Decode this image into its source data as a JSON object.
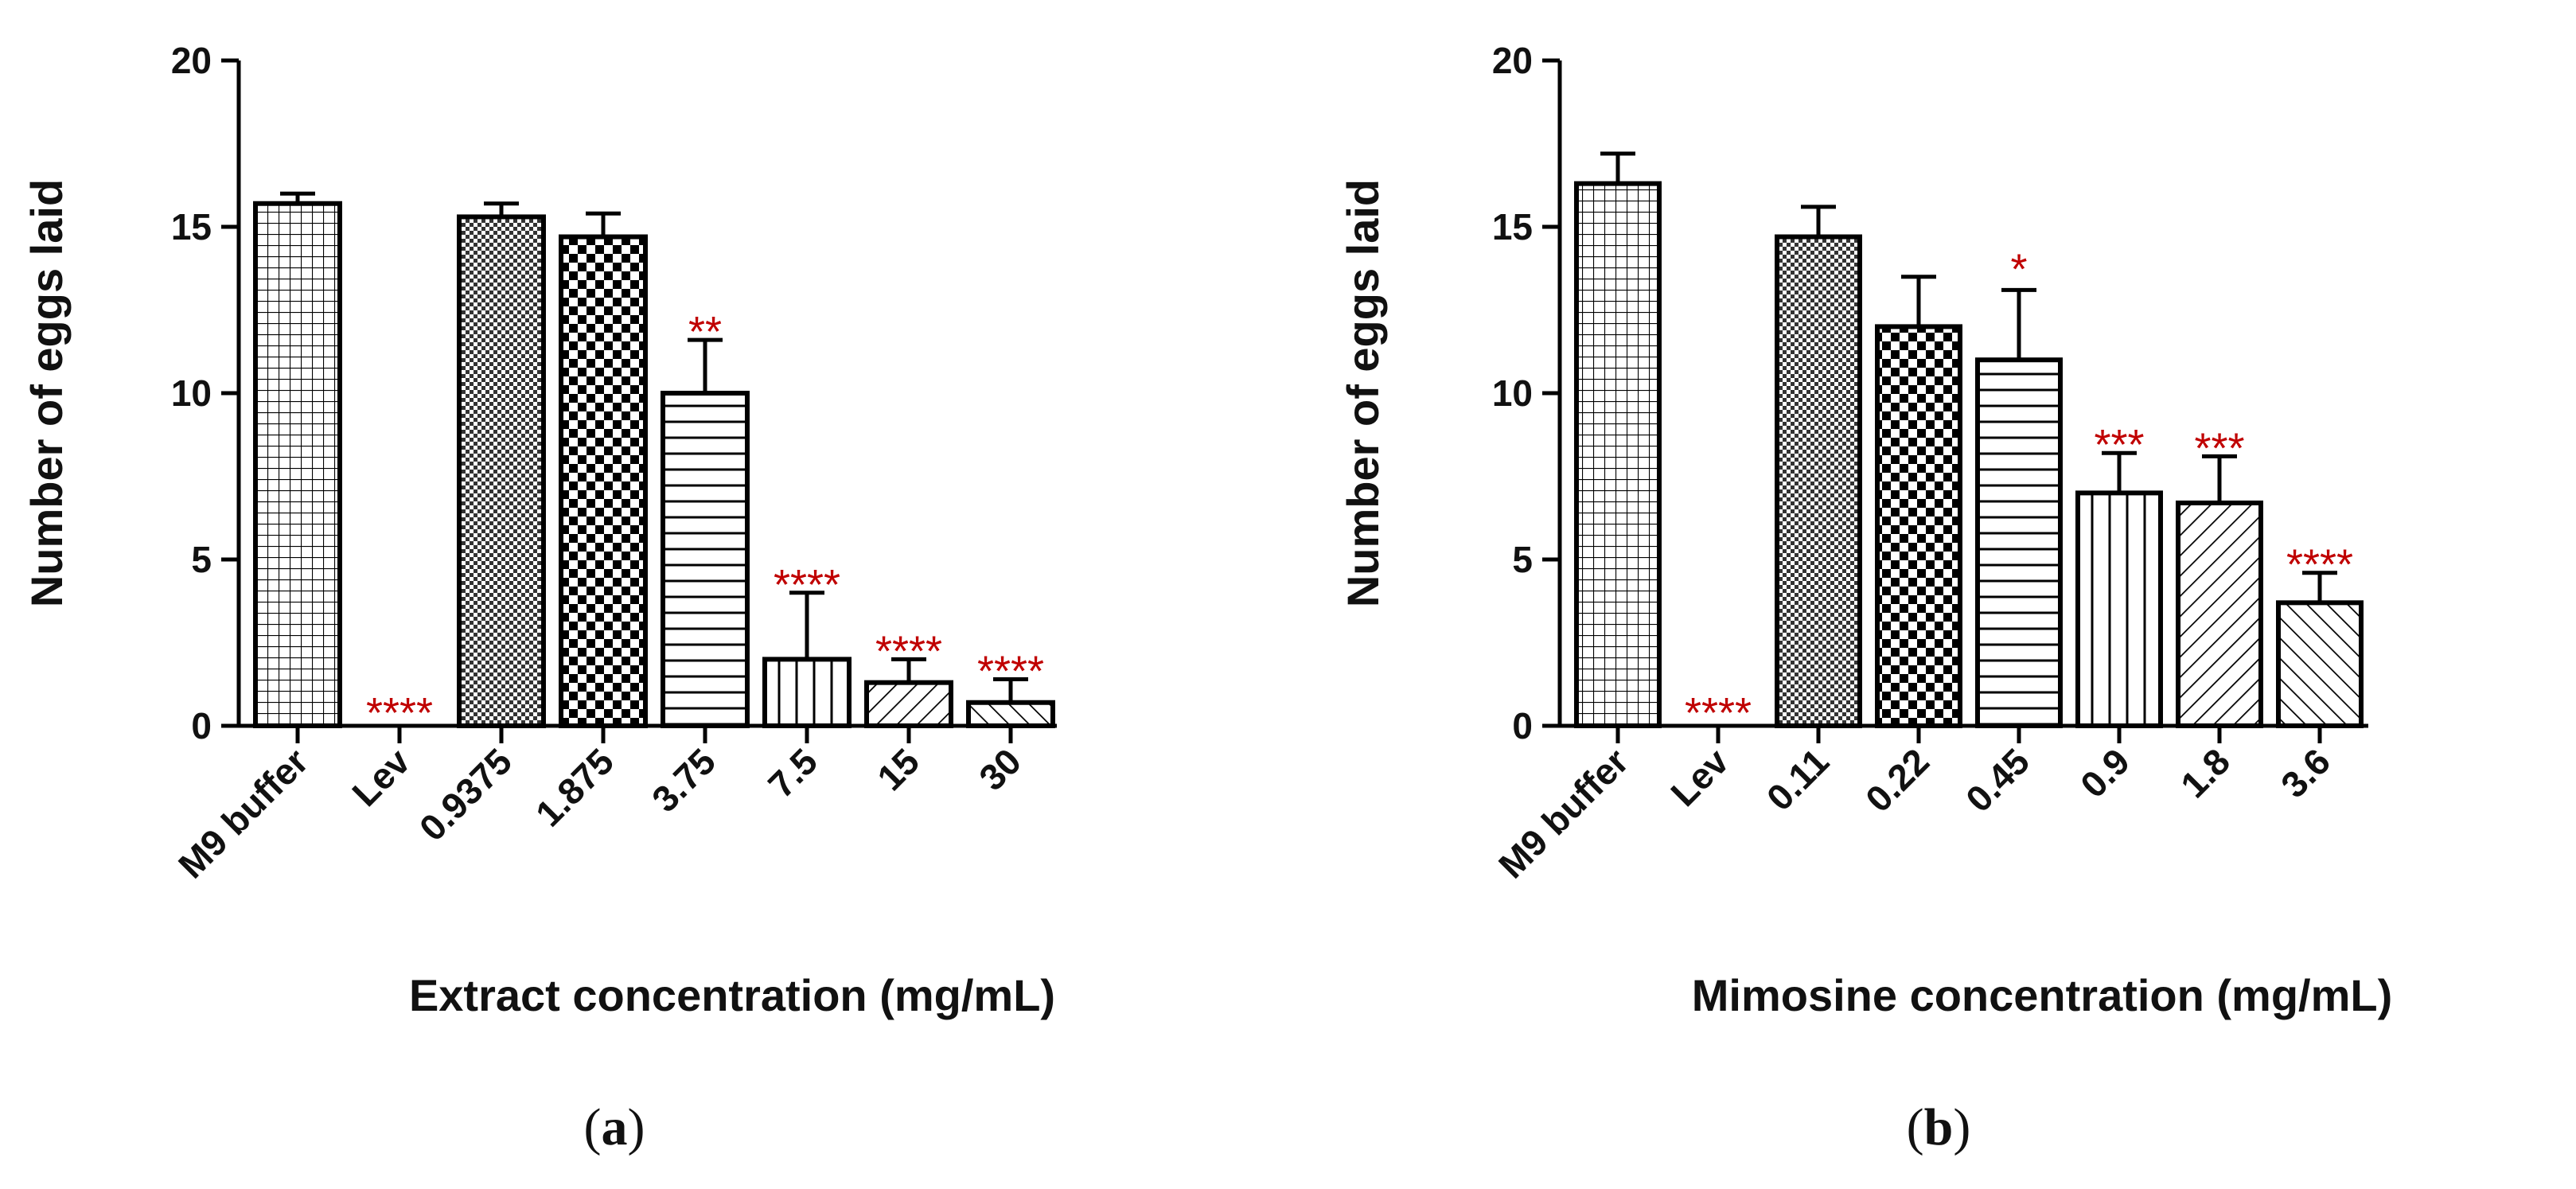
{
  "chart_data": [
    {
      "type": "bar",
      "panel": "a",
      "xlabel": "Extract concentration (mg/mL)",
      "ylabel": "Number of eggs laid",
      "ylim": [
        0,
        20
      ],
      "yticks": [
        "0",
        "5",
        "10",
        "15",
        "20"
      ],
      "categories": [
        "M9 buffer",
        "Lev",
        "0.9375",
        "1.875",
        "3.75",
        "7.5",
        "15",
        "30"
      ],
      "values": [
        15.7,
        0,
        15.3,
        14.7,
        10.0,
        2.0,
        1.3,
        0.7
      ],
      "errors": [
        0.3,
        0,
        0.4,
        0.7,
        1.6,
        2.0,
        0.7,
        0.7
      ],
      "patterns": [
        "grid",
        "none",
        "fine-check",
        "check",
        "hlines",
        "vlines",
        "diag-right",
        "diag-left"
      ],
      "significance": [
        "",
        "****",
        "",
        "",
        "**",
        "****",
        "****",
        "****"
      ]
    },
    {
      "type": "bar",
      "panel": "b",
      "xlabel": "Mimosine concentration (mg/mL)",
      "ylabel": "Number of eggs laid",
      "ylim": [
        0,
        20
      ],
      "yticks": [
        "0",
        "5",
        "10",
        "15",
        "20"
      ],
      "categories": [
        "M9 buffer",
        "Lev",
        "0.11",
        "0.22",
        "0.45",
        "0.9",
        "1.8",
        "3.6"
      ],
      "values": [
        16.3,
        0,
        14.7,
        12.0,
        11.0,
        7.0,
        6.7,
        3.7
      ],
      "errors": [
        0.9,
        0,
        0.9,
        1.5,
        2.1,
        1.2,
        1.4,
        0.9
      ],
      "patterns": [
        "grid",
        "none",
        "fine-check",
        "check",
        "hlines",
        "vlines",
        "diag-right",
        "diag-left"
      ],
      "significance": [
        "",
        "****",
        "",
        "",
        "*",
        "***",
        "***",
        "****"
      ]
    }
  ],
  "panel_labels": {
    "a": {
      "open": "(",
      "letter": "a",
      "close": ")"
    },
    "b": {
      "open": "(",
      "letter": "b",
      "close": ")"
    }
  },
  "colors": {
    "bar_stroke": "#000000",
    "significance": "#c00000"
  }
}
